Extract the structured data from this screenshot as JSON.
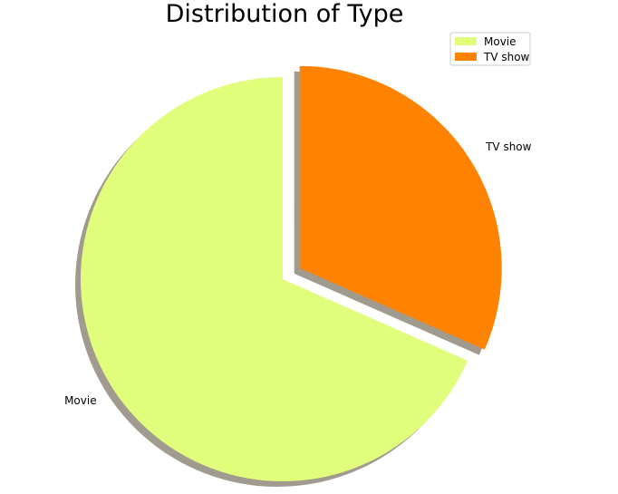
{
  "chart_data": {
    "type": "pie",
    "title": "Distribution of Type",
    "categories": [
      "Movie",
      "TV show"
    ],
    "values": [
      68.4,
      31.6
    ],
    "unit": "percent",
    "colors": [
      "#e0fd7b",
      "#ff8200"
    ],
    "explode": [
      0,
      0.1
    ],
    "shadow": true,
    "start_angle_deg": 90,
    "legend": {
      "position": "top-right",
      "entries": [
        "Movie",
        "TV show"
      ]
    }
  }
}
